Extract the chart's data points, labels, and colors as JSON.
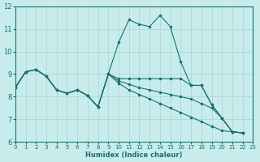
{
  "xlabel": "Humidex (Indice chaleur)",
  "bg_color": "#c8ecec",
  "grid_color": "#a8d4d4",
  "line_color": "#1a7070",
  "spine_color": "#1a7070",
  "xlim": [
    0,
    23
  ],
  "ylim": [
    6,
    12
  ],
  "yticks": [
    6,
    7,
    8,
    9,
    10,
    11,
    12
  ],
  "xticks": [
    0,
    1,
    2,
    3,
    4,
    5,
    6,
    7,
    8,
    9,
    10,
    11,
    12,
    13,
    14,
    15,
    16,
    17,
    18,
    19,
    20,
    21,
    22,
    23
  ],
  "xvals_long": [
    0,
    1,
    2,
    3,
    4,
    5,
    6,
    7,
    8,
    9,
    10,
    11,
    12,
    13,
    14,
    15,
    16,
    17,
    18,
    19,
    20,
    21,
    22
  ],
  "lines": [
    {
      "x": [
        0,
        1,
        2,
        3,
        4,
        5,
        6,
        7,
        8,
        9,
        10,
        11,
        12,
        13,
        14,
        15,
        16,
        17,
        18,
        19,
        20,
        21,
        22
      ],
      "y": [
        8.4,
        9.1,
        9.2,
        8.9,
        8.3,
        8.15,
        8.3,
        8.05,
        7.55,
        9.0,
        10.4,
        11.4,
        11.2,
        11.1,
        11.6,
        11.1,
        9.55,
        8.5,
        8.5,
        7.65,
        7.05,
        6.45,
        6.4
      ]
    },
    {
      "x": [
        0,
        1,
        2,
        3,
        4,
        5,
        6,
        7,
        8,
        9,
        10,
        11,
        12,
        13,
        14,
        15,
        16,
        17,
        18,
        19,
        20,
        21,
        22
      ],
      "y": [
        8.4,
        9.1,
        9.2,
        8.9,
        8.3,
        8.15,
        8.3,
        8.05,
        7.55,
        9.0,
        8.8,
        8.8,
        8.8,
        8.8,
        8.8,
        8.8,
        8.8,
        8.5,
        8.5,
        7.65,
        7.05,
        6.45,
        6.4
      ]
    },
    {
      "x": [
        0,
        1,
        2,
        3,
        4,
        5,
        6,
        7,
        8,
        9,
        10,
        11,
        12,
        13,
        14,
        15,
        16,
        17,
        18,
        19,
        20,
        21,
        22
      ],
      "y": [
        8.4,
        9.1,
        9.2,
        8.9,
        8.3,
        8.15,
        8.3,
        8.05,
        7.55,
        9.0,
        8.7,
        8.55,
        8.4,
        8.3,
        8.2,
        8.1,
        8.0,
        7.9,
        7.7,
        7.5,
        7.05,
        6.45,
        6.4
      ]
    },
    {
      "x": [
        0,
        1,
        2,
        3,
        4,
        5,
        6,
        7,
        8,
        9,
        10,
        11,
        12,
        13,
        14,
        15,
        16,
        17,
        18,
        19,
        20,
        21,
        22
      ],
      "y": [
        8.4,
        9.1,
        9.2,
        8.9,
        8.3,
        8.15,
        8.3,
        8.05,
        7.55,
        9.0,
        8.6,
        8.3,
        8.1,
        7.9,
        7.7,
        7.5,
        7.3,
        7.1,
        6.9,
        6.7,
        6.5,
        6.45,
        6.4
      ]
    }
  ]
}
